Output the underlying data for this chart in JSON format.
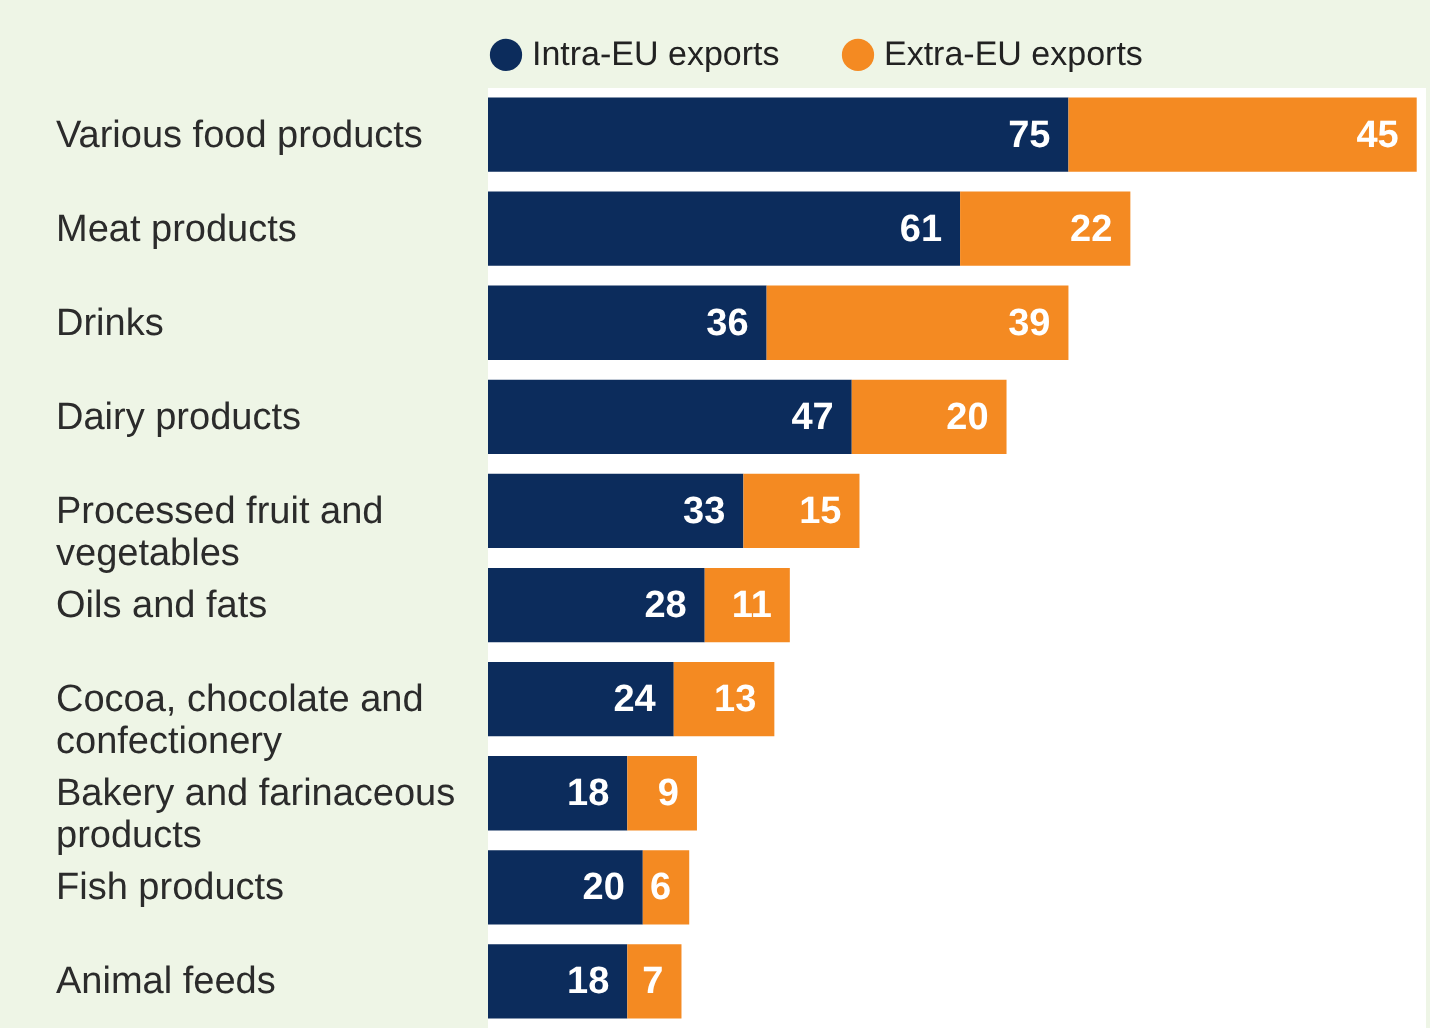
{
  "chart_data": {
    "type": "bar",
    "orientation": "horizontal",
    "stacked": true,
    "data_labels": true,
    "legend": "top",
    "categories": [
      "Various food products",
      "Meat products",
      "Drinks",
      "Dairy products",
      "Processed fruit and vegetables",
      "Oils and fats",
      "Cocoa, chocolate and confectionery",
      "Bakery and farinaceous products",
      "Fish products",
      "Animal feeds"
    ],
    "series": [
      {
        "name": "Intra-EU exports",
        "color": "#0c2c5c",
        "values": [
          75,
          61,
          36,
          47,
          33,
          28,
          24,
          18,
          20,
          18
        ]
      },
      {
        "name": "Extra-EU exports",
        "color": "#f48a22",
        "values": [
          45,
          22,
          39,
          20,
          15,
          11,
          13,
          9,
          6,
          7
        ]
      }
    ]
  }
}
